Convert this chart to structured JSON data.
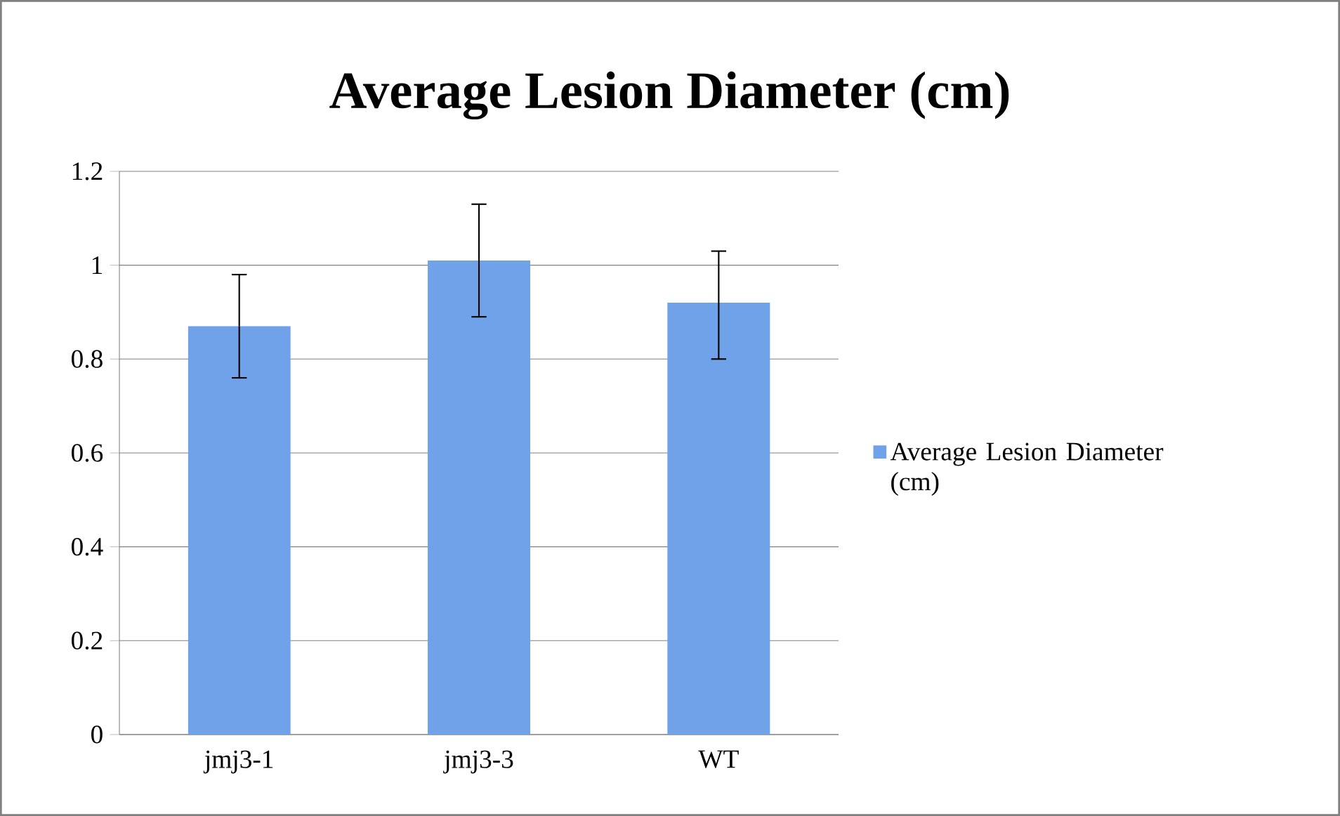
{
  "chart_data": {
    "type": "bar",
    "title": "Average Lesion Diameter (cm)",
    "categories": [
      "jmj3-1",
      "jmj3-3",
      "WT"
    ],
    "series": [
      {
        "name": "Average Lesion Diameter (cm)",
        "color": "#6fa2e8",
        "values": [
          0.87,
          1.01,
          0.92
        ],
        "errors": [
          [
            0.76,
            0.98
          ],
          [
            0.89,
            1.13
          ],
          [
            0.8,
            1.03
          ]
        ]
      }
    ],
    "ylim": [
      0,
      1.2
    ],
    "yticks": [
      0,
      0.2,
      0.4,
      0.6,
      0.8,
      1,
      1.2
    ],
    "grid": "y",
    "legend": "right"
  }
}
